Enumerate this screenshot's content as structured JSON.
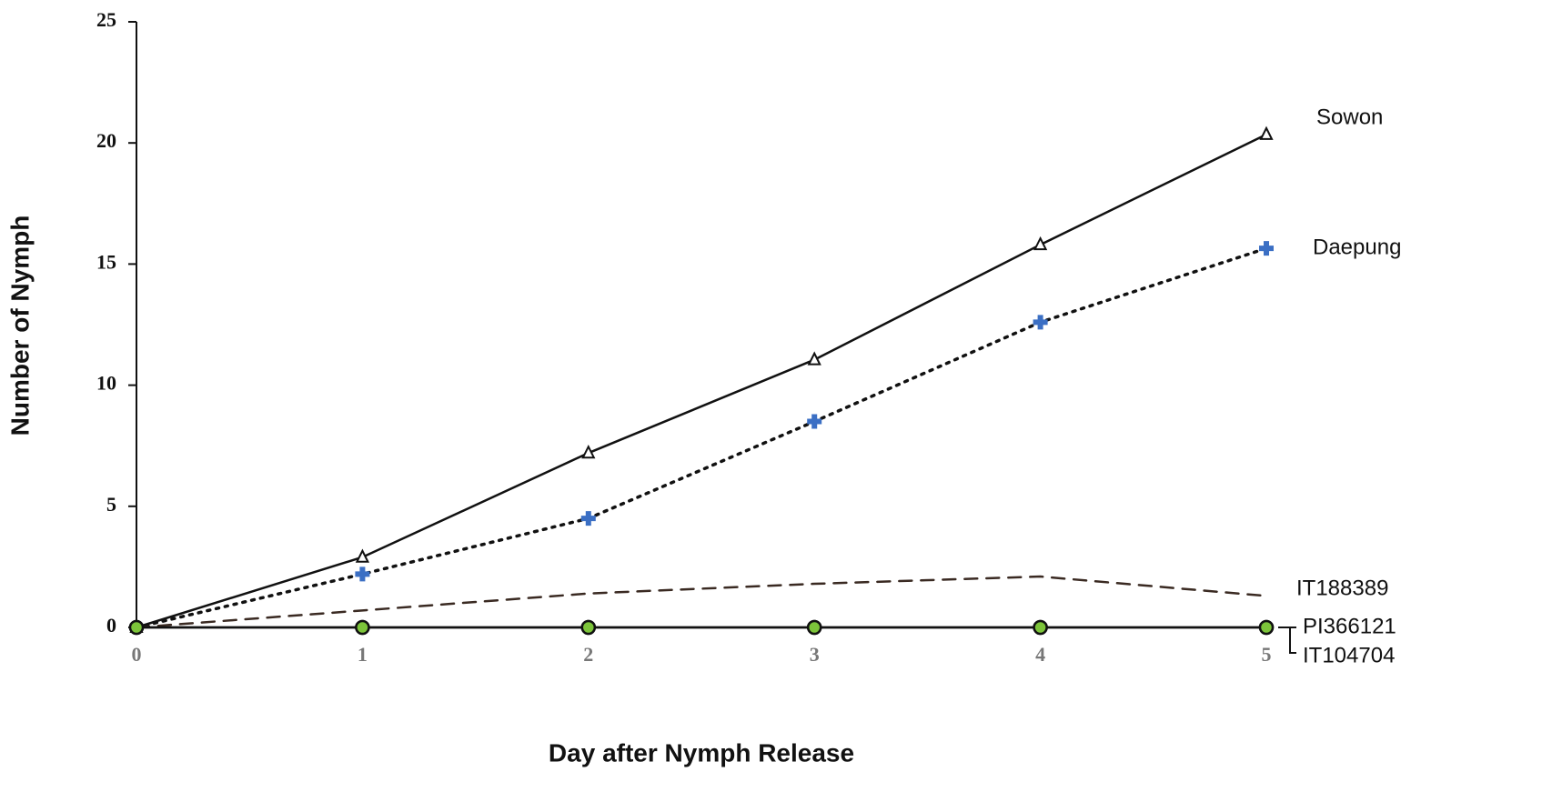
{
  "chart_data": {
    "type": "line",
    "x_label": "Day after Nymph Release",
    "y_label": "Number of Nymph",
    "x": [
      0,
      1,
      2,
      3,
      4,
      5
    ],
    "xlim": [
      0,
      5
    ],
    "xticks": [
      0,
      1,
      2,
      3,
      4,
      5
    ],
    "ylim": [
      0,
      25
    ],
    "yticks": [
      0,
      5,
      10,
      15,
      20,
      25
    ],
    "series": [
      {
        "name": "Sowon",
        "color": "#111111",
        "dash": "solid",
        "marker": "triangle",
        "marker_color": "#ffffff",
        "values": [
          0,
          2.9,
          7.2,
          11.05,
          15.8,
          20.35
        ]
      },
      {
        "name": "Daepung",
        "color": "#111111",
        "dash": "dotted",
        "marker": "plus",
        "marker_color": "#3b6fc4",
        "values": [
          0,
          2.2,
          4.5,
          8.5,
          12.6,
          15.65
        ]
      },
      {
        "name": "IT188389",
        "color": "#3a2a22",
        "dash": "dashed",
        "marker": "none",
        "marker_color": "#3a2a22",
        "values": [
          0,
          0.7,
          1.4,
          1.8,
          2.1,
          1.3
        ]
      },
      {
        "name": "PI366121",
        "color": "#111111",
        "dash": "solid",
        "marker": "circle",
        "marker_color": "#7cc43a",
        "values": [
          0,
          0,
          0,
          0,
          0,
          0
        ]
      },
      {
        "name": "IT104704",
        "color": "#111111",
        "dash": "solid",
        "marker": "circle",
        "marker_color": "#7cc43a",
        "values": [
          0,
          0,
          0,
          0,
          0,
          0
        ]
      }
    ]
  }
}
